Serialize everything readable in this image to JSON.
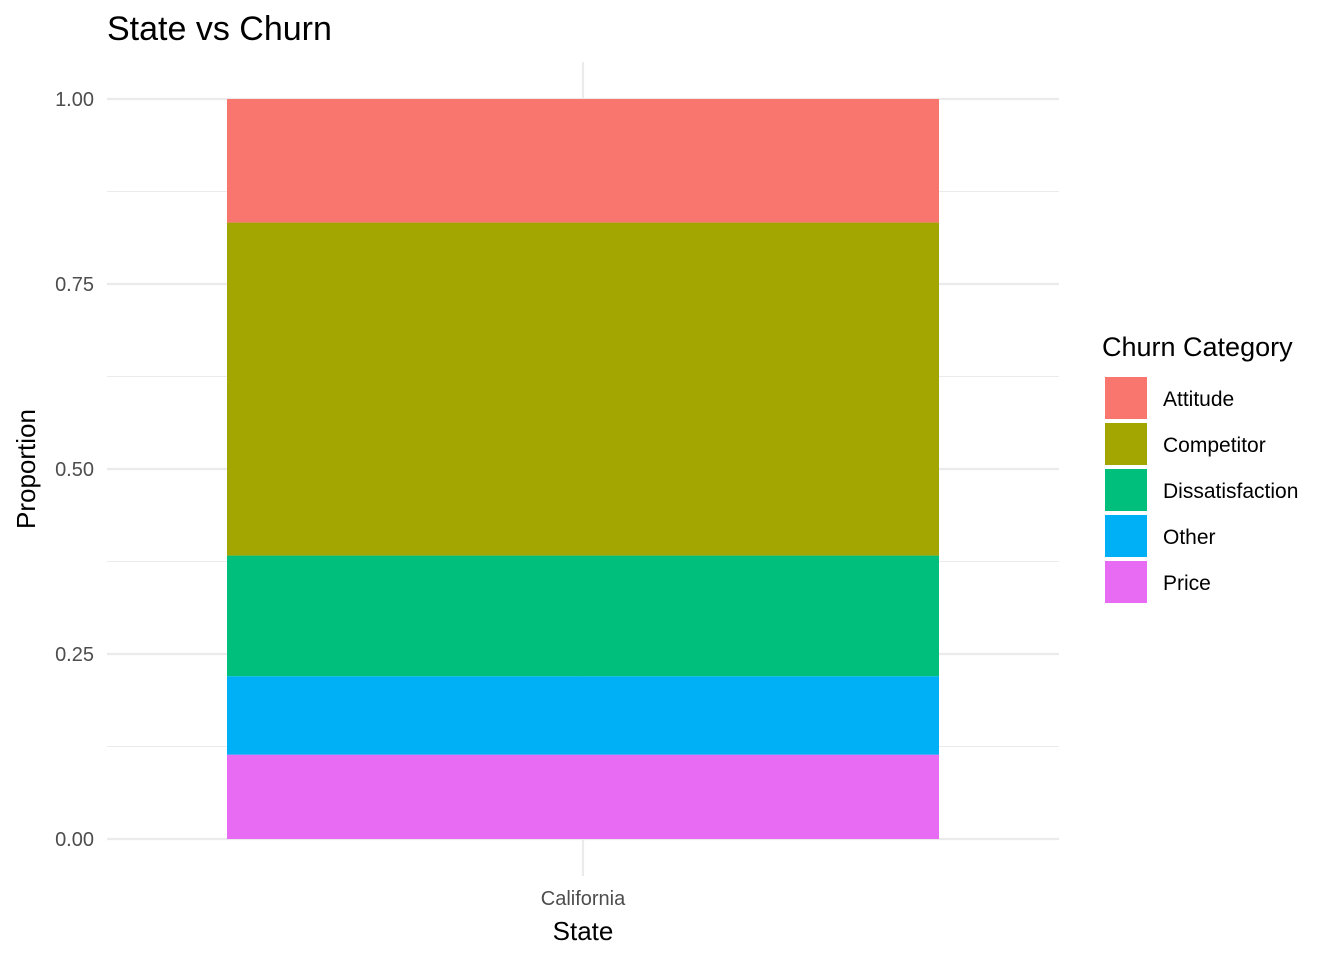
{
  "chart_data": {
    "type": "bar",
    "stacked": true,
    "title": "State vs Churn",
    "xlabel": "State",
    "ylabel": "Proportion",
    "categories": [
      "California"
    ],
    "ylim": [
      0,
      1
    ],
    "yticks": [
      0,
      0.25,
      0.5,
      0.75,
      1
    ],
    "ytick_labels": [
      "0.00",
      "0.25",
      "0.50",
      "0.75",
      "1.00"
    ],
    "grid": true,
    "legend": {
      "title": "Churn Category",
      "position": "right"
    },
    "series": [
      {
        "name": "Attitude",
        "color": "#F8766D",
        "values": [
          0.167
        ]
      },
      {
        "name": "Competitor",
        "color": "#A3A500",
        "values": [
          0.45
        ]
      },
      {
        "name": "Dissatisfaction",
        "color": "#00BF7D",
        "values": [
          0.163
        ]
      },
      {
        "name": "Other",
        "color": "#00B0F6",
        "values": [
          0.106
        ]
      },
      {
        "name": "Price",
        "color": "#E76BF3",
        "values": [
          0.114
        ]
      }
    ]
  }
}
